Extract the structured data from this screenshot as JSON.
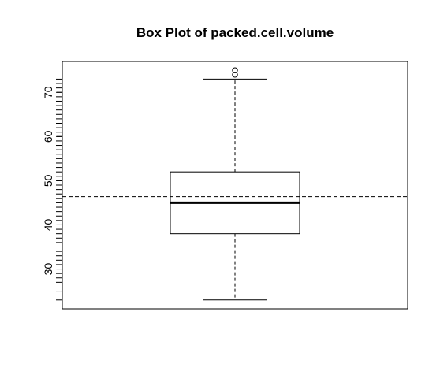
{
  "chart_data": {
    "type": "box",
    "title": "Box Plot of packed.cell.volume",
    "xlabel": "",
    "ylabel": "",
    "y_ticks": [
      30,
      40,
      50,
      60,
      70
    ],
    "ylim": [
      21.0,
      77.0
    ],
    "box": {
      "min": 23,
      "q1": 38,
      "median": 45,
      "q3": 52,
      "max": 73,
      "outliers": [
        74,
        75
      ]
    },
    "reference_line": {
      "y": 46.4,
      "style": "dashed"
    },
    "rug_marks": [
      23,
      25,
      27,
      28,
      29,
      30,
      31,
      32,
      33,
      34,
      35,
      36,
      37,
      38,
      39,
      40,
      41,
      42,
      43,
      44,
      45,
      46,
      47,
      48,
      49,
      50,
      51,
      52,
      53,
      54,
      55,
      56,
      57,
      58,
      59,
      60,
      61,
      62,
      63,
      64,
      65,
      66,
      67,
      68,
      69,
      70,
      71,
      72,
      73
    ],
    "colors": {
      "ink": "#000000",
      "background": "#ffffff"
    }
  }
}
